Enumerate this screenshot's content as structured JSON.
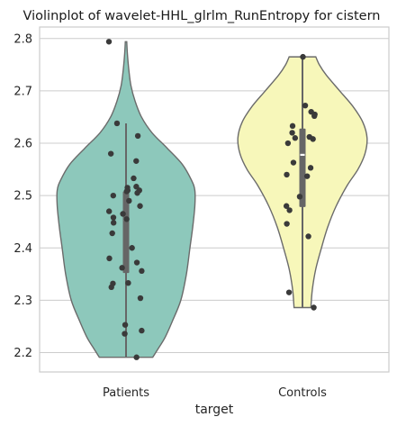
{
  "chart_data": {
    "type": "violin",
    "title": "Violinplot of wavelet-HHL_glrlm_RunEntropy for cistern",
    "xlabel": "target",
    "ylabel": "",
    "ylim": [
      2.163,
      2.822
    ],
    "yticks": [
      "2.2",
      "2.3",
      "2.4",
      "2.5",
      "2.6",
      "2.7",
      "2.8"
    ],
    "yticks_values": [
      2.2,
      2.3,
      2.4,
      2.5,
      2.6,
      2.7,
      2.8
    ],
    "grid": "horizontal",
    "categories": [
      "Patients",
      "Controls"
    ],
    "series": [
      {
        "category": "Patients",
        "color": "#8dc8bb",
        "min": 2.191,
        "max": 2.794,
        "q1": 2.352,
        "median": 2.455,
        "q3": 2.508,
        "whisker_low": 2.191,
        "whisker_high": 2.638,
        "density": [
          [
            2.191,
            0.38
          ],
          [
            2.21,
            0.47
          ],
          [
            2.23,
            0.56
          ],
          [
            2.26,
            0.66
          ],
          [
            2.3,
            0.78
          ],
          [
            2.35,
            0.86
          ],
          [
            2.4,
            0.91
          ],
          [
            2.44,
            0.95
          ],
          [
            2.48,
            0.98
          ],
          [
            2.51,
            0.98
          ],
          [
            2.53,
            0.93
          ],
          [
            2.56,
            0.8
          ],
          [
            2.59,
            0.59
          ],
          [
            2.62,
            0.37
          ],
          [
            2.65,
            0.22
          ],
          [
            2.68,
            0.13
          ],
          [
            2.71,
            0.07
          ],
          [
            2.74,
            0.04
          ],
          [
            2.77,
            0.02
          ],
          [
            2.794,
            0.01
          ]
        ],
        "points": [
          2.794,
          2.638,
          2.614,
          2.566,
          2.58,
          2.533,
          2.517,
          2.515,
          2.51,
          2.51,
          2.508,
          2.505,
          2.5,
          2.49,
          2.48,
          2.47,
          2.465,
          2.458,
          2.455,
          2.448,
          2.428,
          2.4,
          2.38,
          2.372,
          2.362,
          2.356,
          2.333,
          2.332,
          2.325,
          2.304,
          2.253,
          2.242,
          2.236,
          2.191
        ]
      },
      {
        "category": "Controls",
        "color": "#f7f7ba",
        "min": 2.286,
        "max": 2.765,
        "q1": 2.478,
        "median": 2.578,
        "q3": 2.628,
        "whisker_low": 2.286,
        "whisker_high": 2.765,
        "density": [
          [
            2.286,
            0.12
          ],
          [
            2.32,
            0.14
          ],
          [
            2.36,
            0.19
          ],
          [
            2.4,
            0.27
          ],
          [
            2.44,
            0.36
          ],
          [
            2.48,
            0.48
          ],
          [
            2.52,
            0.64
          ],
          [
            2.55,
            0.79
          ],
          [
            2.58,
            0.89
          ],
          [
            2.61,
            0.92
          ],
          [
            2.64,
            0.86
          ],
          [
            2.67,
            0.72
          ],
          [
            2.7,
            0.53
          ],
          [
            2.73,
            0.34
          ],
          [
            2.75,
            0.24
          ],
          [
            2.765,
            0.19
          ]
        ],
        "points": [
          2.765,
          2.672,
          2.66,
          2.655,
          2.652,
          2.633,
          2.62,
          2.612,
          2.61,
          2.608,
          2.6,
          2.563,
          2.553,
          2.54,
          2.537,
          2.498,
          2.48,
          2.472,
          2.446,
          2.422,
          2.315,
          2.286
        ]
      }
    ]
  }
}
